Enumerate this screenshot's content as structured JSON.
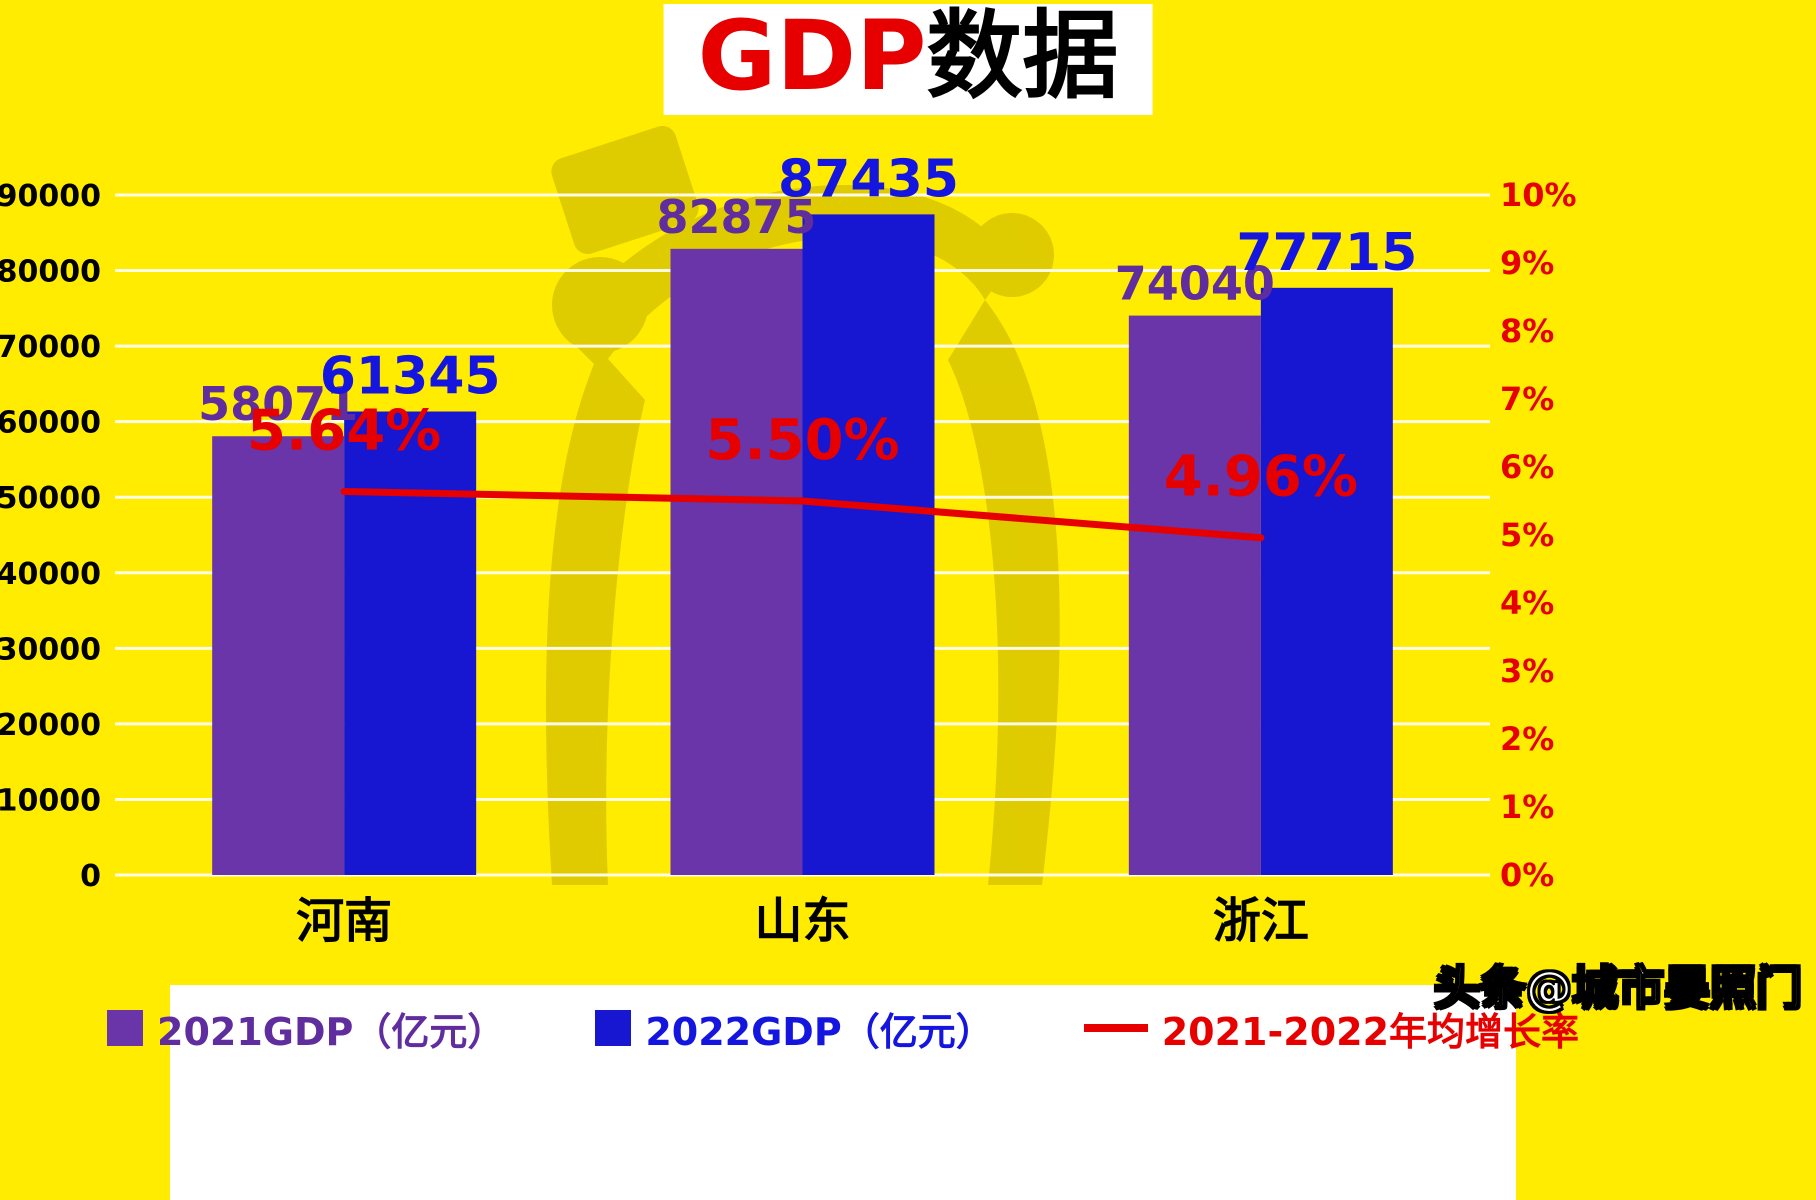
{
  "title": {
    "highlight": "GDP",
    "rest": "数据"
  },
  "watermark_text": "头条@城市晏照门",
  "legend": {
    "items": [
      {
        "label": "2021GDP（亿元）",
        "color": "#6A35A8",
        "text_color": "#5F2D9E",
        "type": "square"
      },
      {
        "label": "2022GDP（亿元）",
        "color": "#1717D2",
        "text_color": "#1515E0",
        "type": "square"
      },
      {
        "label": "2021-2022年均增长率",
        "color": "#E60000",
        "text_color": "#E60000",
        "type": "line"
      }
    ]
  },
  "chart_data": {
    "type": "bar",
    "title": "GDP数据",
    "categories": [
      "河南",
      "山东",
      "浙江"
    ],
    "series": [
      {
        "name": "2021GDP（亿元）",
        "color": "#6A35A8",
        "label_color": "#5F2D9E",
        "values": [
          58071,
          82875,
          74040
        ]
      },
      {
        "name": "2022GDP（亿元）",
        "color": "#1717D2",
        "label_color": "#1515E0",
        "values": [
          61345,
          87435,
          77715
        ]
      }
    ],
    "line_series": {
      "name": "2021-2022年均增长率",
      "color": "#E60000",
      "values_pct": [
        5.64,
        5.5,
        4.96
      ]
    },
    "left_axis": {
      "min": 0,
      "max": 90000,
      "step": 10000
    },
    "right_axis": {
      "min": 0,
      "max": 10,
      "step": 1,
      "suffix": "%"
    },
    "grid": true,
    "legend_position": "bottom"
  }
}
